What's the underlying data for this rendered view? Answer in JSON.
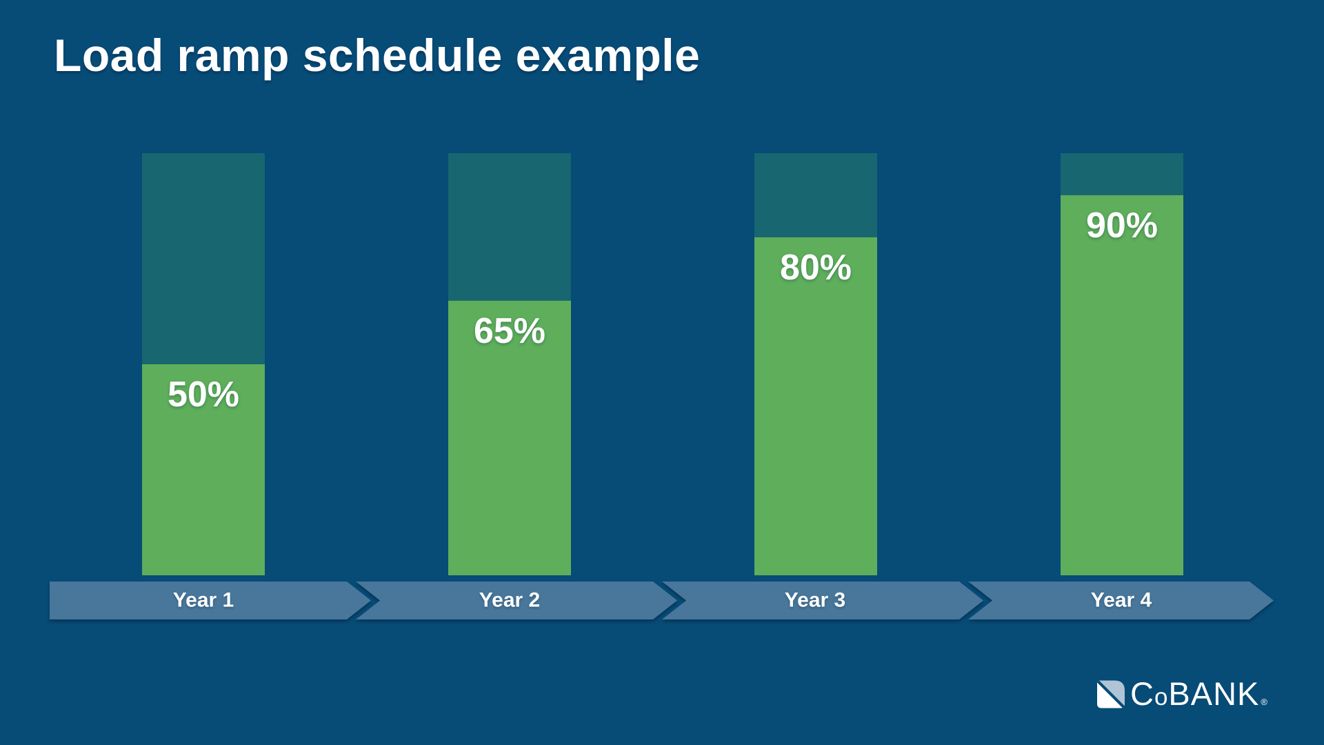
{
  "title": "Load ramp schedule example",
  "chart_data": {
    "type": "bar",
    "title": "Load ramp schedule example",
    "categories": [
      "Year 1",
      "Year 2",
      "Year 3",
      "Year 4"
    ],
    "values": [
      50,
      65,
      80,
      90
    ],
    "value_labels": [
      "50%",
      "65%",
      "80%",
      "90%"
    ],
    "unit": "%",
    "ylim": [
      0,
      100
    ],
    "grid": false,
    "legend": false,
    "layout_hint": "each teal backdrop bar represents the full 0-100% range; green fill height equals the labeled percent; x-axis rendered as chevron arrow timeline",
    "colors": {
      "background": "#074B77",
      "bar_backdrop_teal": "#186670",
      "bar_fill_green": "#5EAE5C",
      "timeline_band": "#48779B",
      "text": "#FFFFFF"
    }
  },
  "logo": {
    "c": "C",
    "o": "o",
    "rest": "BANK",
    "registered": "®"
  }
}
